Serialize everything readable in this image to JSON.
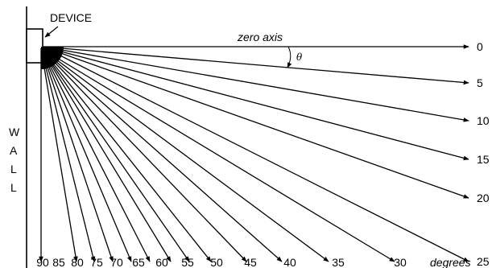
{
  "labels": {
    "device": "DEVICE",
    "zero_axis": "zero axis",
    "theta": "θ",
    "wall": [
      "W",
      "A",
      "L",
      "L"
    ],
    "degrees": "degrees"
  },
  "rays": {
    "right_edge": [
      {
        "angle": 0,
        "label": "0"
      },
      {
        "angle": 5,
        "label": "5"
      },
      {
        "angle": 10,
        "label": "10"
      },
      {
        "angle": 15,
        "label": "15"
      },
      {
        "angle": 20,
        "label": "20"
      },
      {
        "angle": 25,
        "label": "25"
      }
    ],
    "bottom_edge": [
      {
        "angle": 30,
        "label": "30"
      },
      {
        "angle": 35,
        "label": "35"
      },
      {
        "angle": 40,
        "label": "40"
      },
      {
        "angle": 45,
        "label": "45"
      },
      {
        "angle": 50,
        "label": "50"
      },
      {
        "angle": 55,
        "label": "55"
      },
      {
        "angle": 60,
        "label": "60"
      },
      {
        "angle": 65,
        "label": "65"
      },
      {
        "angle": 70,
        "label": "70"
      },
      {
        "angle": 75,
        "label": "75"
      },
      {
        "angle": 80,
        "label": "80"
      },
      {
        "angle": 85,
        "label": "85"
      },
      {
        "angle": 90,
        "label": "90"
      }
    ]
  }
}
